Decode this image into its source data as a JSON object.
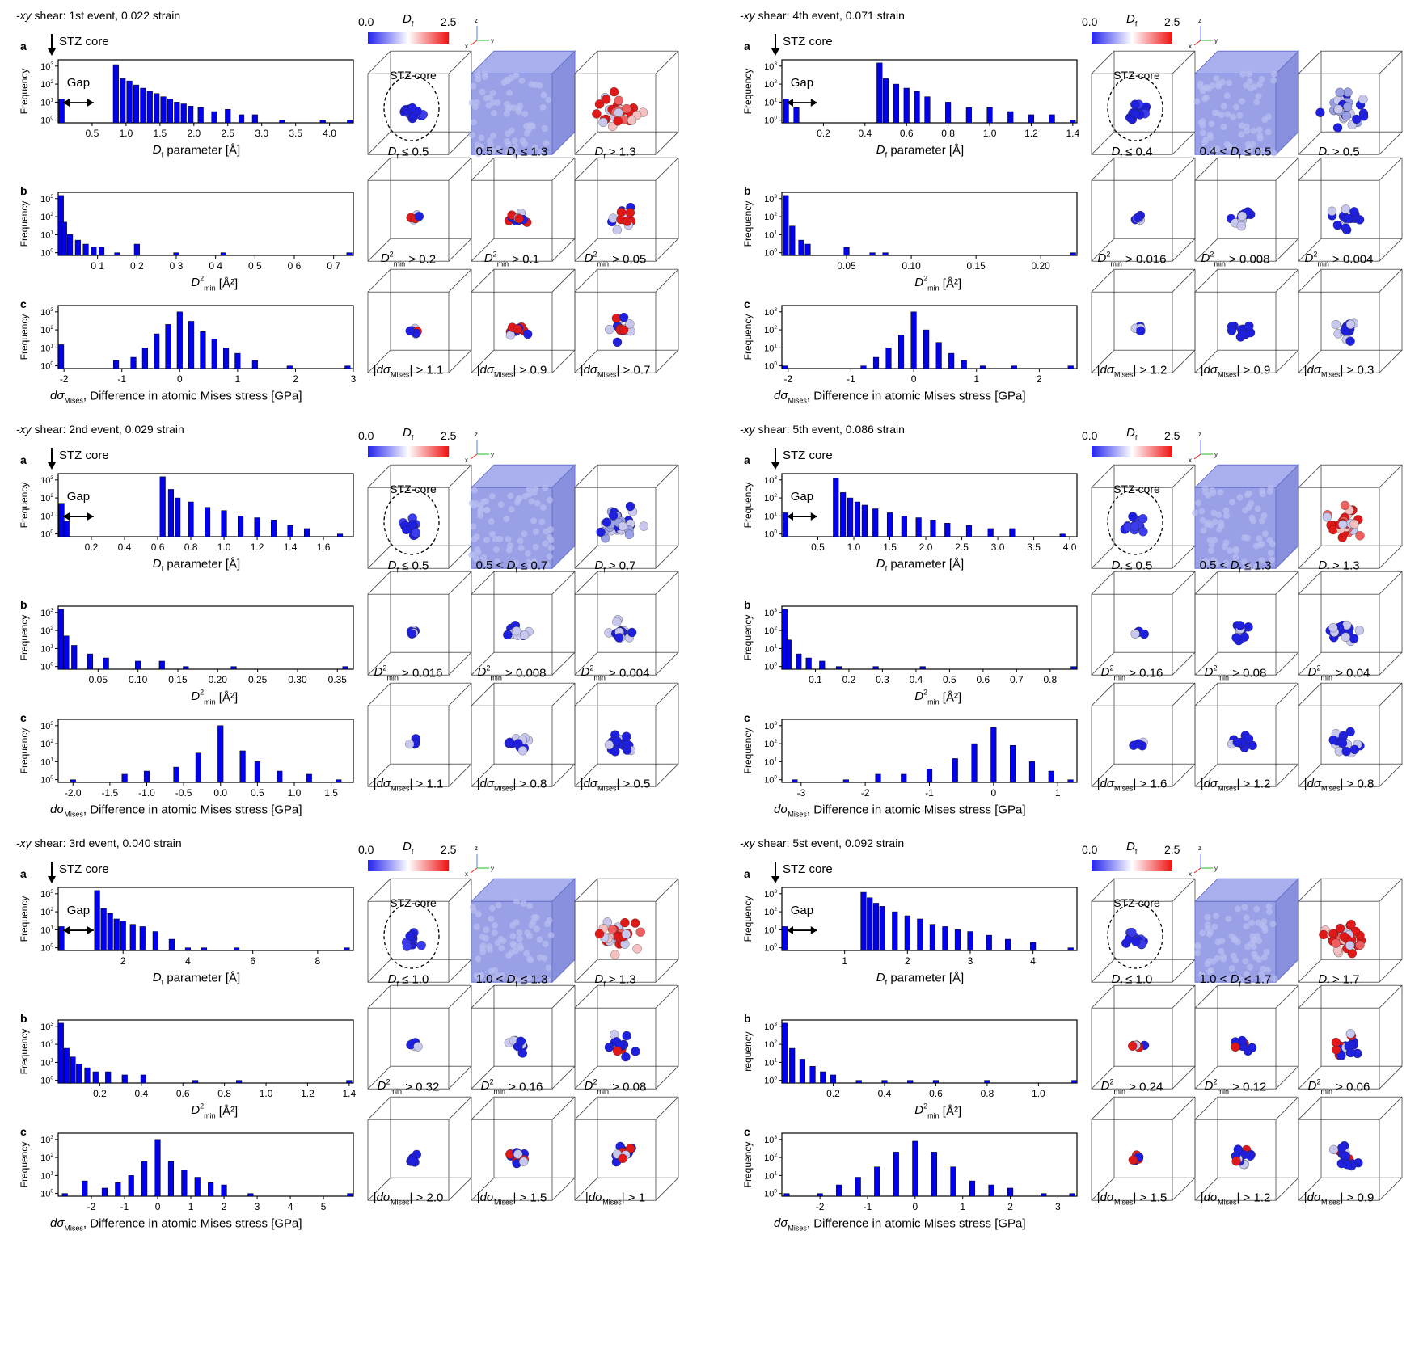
{
  "colors": {
    "bar": "#0000ee",
    "bar_edge": "#000000",
    "cb_low": "#2222ee",
    "cb_mid": "#ffffff",
    "cb_high": "#ee1111",
    "atom_blue": "#1f1fe0",
    "atom_red": "#e01818",
    "atom_pale": "#c8c8ee"
  },
  "common": {
    "freq": "Frequency",
    "freq_b_event6": "requency",
    "df_axis": "D",
    "df_sub": "f",
    "df_axis_rest": " parameter  [Å]",
    "d2_axis": "D",
    "d2_sup": "2",
    "d2_sub": "min",
    "d2_unit": "[Å²]",
    "ds_axis": "dσ",
    "ds_sub": "Mises",
    "ds_rest": ", Difference in atomic Mises stress [GPa]",
    "cb_min": "0.0",
    "cb_max": "2.5",
    "cb_label": "D",
    "cb_sub": "f",
    "stz_core": "STZ core",
    "gap": "Gap",
    "labels": [
      "a",
      "b",
      "c"
    ],
    "axis_x": "x",
    "axis_y": "y",
    "axis_z": "z"
  },
  "events": [
    {
      "title": "-xy shear: 1st event, 0.022 strain",
      "title_prefix": "-xy",
      "title_rest": " shear: 1st event, 0.022 strain",
      "gap": true,
      "xrange_a": [
        0,
        4.35
      ],
      "xrange_b": [
        0,
        0.75
      ],
      "xrange_c": [
        -2.1,
        3.0
      ],
      "ticks_a": [
        "0.5",
        "1.0",
        "1.5",
        "2.0",
        "2.5",
        "3.0",
        "3.5",
        "4.0"
      ],
      "ticks_a_v": [
        0.5,
        1.0,
        1.5,
        2.0,
        2.5,
        3.0,
        3.5,
        4.0
      ],
      "ticks_b": [
        "0 1",
        "0 2",
        "0 3",
        "0 4",
        "0 5",
        "0 6",
        "0 7"
      ],
      "ticks_b_v": [
        0.1,
        0.2,
        0.3,
        0.4,
        0.5,
        0.6,
        0.7
      ],
      "ticks_c": [
        "-2",
        "-1",
        "0",
        "1",
        "2",
        "3"
      ],
      "ticks_c_v": [
        -2,
        -1,
        0,
        1,
        2,
        3
      ],
      "cap_a": [
        "≤ 0.5",
        "0.5 < ",
        " ≤ 1.3",
        "> 1.3"
      ],
      "cap_b": [
        "> 0.2",
        "> 0.1",
        "> 0.05"
      ],
      "cap_c": [
        "> 1.1",
        "> 0.9",
        "> 0.7"
      ]
    },
    {
      "title": "-xy shear: 4th event, 0.071 strain",
      "title_prefix": "-xy",
      "title_rest": " shear: 4th event, 0.071 strain",
      "gap": true,
      "xrange_a": [
        0,
        1.42
      ],
      "xrange_b": [
        0,
        0.228
      ],
      "xrange_c": [
        -2.1,
        2.6
      ],
      "ticks_a": [
        "0.2",
        "0.4",
        "0.6",
        "0.8",
        "1.0",
        "1.2",
        "1.4"
      ],
      "ticks_a_v": [
        0.2,
        0.4,
        0.6,
        0.8,
        1.0,
        1.2,
        1.4
      ],
      "ticks_b": [
        "0.05",
        "0.10",
        "0.15",
        "0.20"
      ],
      "ticks_b_v": [
        0.05,
        0.1,
        0.15,
        0.2
      ],
      "ticks_c": [
        "-2",
        "-1",
        "0",
        "1",
        "2"
      ],
      "ticks_c_v": [
        -2,
        -1,
        0,
        1,
        2
      ],
      "cap_a": [
        "≤ 0.4",
        "0.4 < ",
        " ≤ 0.5",
        "> 0.5"
      ],
      "cap_b": [
        "> 0.016",
        "> 0.008",
        "> 0.004"
      ],
      "cap_c": [
        "> 1.2",
        "> 0.9",
        "> 0.3"
      ]
    },
    {
      "title": "-xy shear: 2nd event, 0.029 strain",
      "title_prefix": "-xy",
      "title_rest": " shear: 2nd event, 0.029 strain",
      "gap": true,
      "xrange_a": [
        0,
        1.78
      ],
      "xrange_b": [
        0,
        0.37
      ],
      "xrange_c": [
        -2.2,
        1.8
      ],
      "ticks_a": [
        "0.2",
        "0.4",
        "0.6",
        "0.8",
        "1.0",
        "1.2",
        "1.4",
        "1.6"
      ],
      "ticks_a_v": [
        0.2,
        0.4,
        0.6,
        0.8,
        1.0,
        1.2,
        1.4,
        1.6
      ],
      "ticks_b": [
        "0.05",
        "0.10",
        "0.15",
        "0.20",
        "0.25",
        "0.30",
        "0.35"
      ],
      "ticks_b_v": [
        0.05,
        0.1,
        0.15,
        0.2,
        0.25,
        0.3,
        0.35
      ],
      "ticks_c": [
        "-2.0",
        "-1.5",
        "-1.0",
        "-0.5",
        "0.0",
        "0.5",
        "1.0",
        "1.5"
      ],
      "ticks_c_v": [
        -2.0,
        -1.5,
        -1.0,
        -0.5,
        0.0,
        0.5,
        1.0,
        1.5
      ],
      "cap_a": [
        "≤ 0.5",
        "0.5 < ",
        " ≤ 0.7",
        "> 0.7"
      ],
      "cap_b": [
        "> 0.016",
        "> 0.008",
        "> 0.004"
      ],
      "cap_c": [
        "> 1.1",
        "> 0.8",
        "> 0.5"
      ]
    },
    {
      "title": "-xy shear: 5th event, 0.086 strain",
      "title_prefix": "-xy",
      "title_rest": " shear: 5th event, 0.086 strain",
      "gap": true,
      "xrange_a": [
        0,
        4.1
      ],
      "xrange_b": [
        0,
        0.88
      ],
      "xrange_c": [
        -3.3,
        1.3
      ],
      "ticks_a": [
        "0.5",
        "1.0",
        "1.5",
        "2.0",
        "2.5",
        "3.0",
        "3.5",
        "4.0"
      ],
      "ticks_a_v": [
        0.5,
        1.0,
        1.5,
        2.0,
        2.5,
        3.0,
        3.5,
        4.0
      ],
      "ticks_b": [
        "0.1",
        "0.2",
        "0.3",
        "0.4",
        "0.5",
        "0.6",
        "0.7",
        "0.8"
      ],
      "ticks_b_v": [
        0.1,
        0.2,
        0.3,
        0.4,
        0.5,
        0.6,
        0.7,
        0.8
      ],
      "ticks_c": [
        "-3",
        "-2",
        "-1",
        "0",
        "1"
      ],
      "ticks_c_v": [
        -3,
        -2,
        -1,
        0,
        1
      ],
      "cap_a": [
        "≤ 0.5",
        "0.5 < ",
        " ≤ 1.3",
        "> 1.3"
      ],
      "cap_b": [
        "> 0.16",
        "> 0.08",
        "> 0.04"
      ],
      "cap_c": [
        "> 1.6",
        "> 1.2",
        "> 0.8"
      ]
    },
    {
      "title": "-xy shear: 3rd event, 0.040 strain",
      "title_prefix": "-xy",
      "title_rest": " shear: 3rd event, 0.040 strain",
      "gap": true,
      "xrange_a": [
        0,
        9.1
      ],
      "xrange_b": [
        0,
        1.42
      ],
      "xrange_c": [
        -3.0,
        5.9
      ],
      "ticks_a": [
        "2",
        "4",
        "6",
        "8"
      ],
      "ticks_a_v": [
        2,
        4,
        6,
        8
      ],
      "ticks_b": [
        "0.2",
        "0.4",
        "0.6",
        "0.8",
        "1.0",
        "1.2",
        "1.4"
      ],
      "ticks_b_v": [
        0.2,
        0.4,
        0.6,
        0.8,
        1.0,
        1.2,
        1.4
      ],
      "ticks_c": [
        "-2",
        "-1",
        "0",
        "1",
        "2",
        "3",
        "4",
        "5"
      ],
      "ticks_c_v": [
        -2,
        -1,
        0,
        1,
        2,
        3,
        4,
        5
      ],
      "cap_a": [
        "≤ 1.0",
        "1.0 < ",
        " ≤ 1.3",
        "> 1.3"
      ],
      "cap_b": [
        "> 0.32",
        "> 0.16",
        "> 0.08"
      ],
      "cap_c": [
        "> 2.0",
        "> 1.5",
        "> 1"
      ]
    },
    {
      "title": "-xy shear: 5st event, 0.092 strain",
      "title_prefix": "-xy",
      "title_rest": " shear: 5st event, 0.092 strain",
      "gap": true,
      "xrange_a": [
        0,
        4.7
      ],
      "xrange_b": [
        0,
        1.15
      ],
      "xrange_c": [
        -2.8,
        3.4
      ],
      "ticks_a": [
        "1",
        "2",
        "3",
        "4"
      ],
      "ticks_a_v": [
        1,
        2,
        3,
        4
      ],
      "ticks_b": [
        "0.2",
        "0.4",
        "0.6",
        "0.8",
        "1.0"
      ],
      "ticks_b_v": [
        0.2,
        0.4,
        0.6,
        0.8,
        1.0
      ],
      "ticks_c": [
        "-2",
        "-1",
        "0",
        "1",
        "2",
        "3"
      ],
      "ticks_c_v": [
        -2,
        -1,
        0,
        1,
        2,
        3
      ],
      "cap_a": [
        "≤ 1.0",
        "1.0 < ",
        " ≤ 1.7",
        "> 1.7"
      ],
      "cap_b": [
        "> 0.24",
        "> 0.12",
        "> 0.06"
      ],
      "cap_c": [
        "> 1.5",
        "> 1.2",
        "> 0.9"
      ]
    }
  ],
  "chart_data": [
    {
      "type": "bar",
      "event": 1,
      "panel": "a",
      "x": [
        0.05,
        0.85,
        0.95,
        1.05,
        1.15,
        1.25,
        1.35,
        1.45,
        1.55,
        1.65,
        1.75,
        1.85,
        1.95,
        2.1,
        2.3,
        2.5,
        2.7,
        2.9,
        3.3,
        3.9,
        4.3
      ],
      "y": [
        15,
        1200,
        200,
        150,
        90,
        60,
        40,
        30,
        20,
        15,
        10,
        8,
        6,
        5,
        3,
        4,
        2,
        2,
        1,
        1,
        1
      ],
      "yscale": "log"
    },
    {
      "type": "bar",
      "event": 1,
      "panel": "b",
      "x": [
        0.005,
        0.015,
        0.03,
        0.05,
        0.07,
        0.09,
        0.11,
        0.15,
        0.2,
        0.3,
        0.42,
        0.74
      ],
      "y": [
        1500,
        50,
        10,
        5,
        3,
        2,
        2,
        1,
        3,
        1,
        1,
        1
      ],
      "yscale": "log"
    },
    {
      "type": "bar",
      "event": 1,
      "panel": "c",
      "x": [
        -2.05,
        -1.1,
        -0.8,
        -0.6,
        -0.4,
        -0.2,
        0,
        0.2,
        0.4,
        0.6,
        0.8,
        1.0,
        1.3,
        1.9,
        2.9
      ],
      "y": [
        15,
        2,
        3,
        10,
        60,
        200,
        1000,
        300,
        80,
        30,
        10,
        5,
        2,
        1,
        1
      ],
      "yscale": "log"
    },
    {
      "type": "bar",
      "event": 2,
      "panel": "a",
      "x": [
        0.02,
        0.07,
        0.47,
        0.5,
        0.55,
        0.6,
        0.65,
        0.7,
        0.8,
        0.9,
        1.0,
        1.1,
        1.2,
        1.3,
        1.4
      ],
      "y": [
        15,
        5,
        1500,
        200,
        100,
        60,
        40,
        20,
        10,
        5,
        5,
        3,
        2,
        2,
        1
      ],
      "yscale": "log"
    },
    {
      "type": "bar",
      "event": 2,
      "panel": "b",
      "x": [
        0.003,
        0.008,
        0.015,
        0.02,
        0.05,
        0.07,
        0.08,
        0.225
      ],
      "y": [
        1500,
        30,
        5,
        3,
        2,
        1,
        1,
        1
      ],
      "yscale": "log"
    },
    {
      "type": "bar",
      "event": 2,
      "panel": "c",
      "x": [
        -2.05,
        -0.8,
        -0.6,
        -0.4,
        -0.2,
        0,
        0.2,
        0.4,
        0.6,
        0.8,
        1.1,
        1.6,
        2.5
      ],
      "y": [
        1,
        1,
        3,
        10,
        50,
        1000,
        100,
        20,
        5,
        2,
        1,
        1,
        1
      ],
      "yscale": "log"
    },
    {
      "type": "bar",
      "event": 3,
      "panel": "a",
      "x": [
        0.02,
        0.05,
        0.63,
        0.68,
        0.72,
        0.8,
        0.9,
        1.0,
        1.1,
        1.2,
        1.3,
        1.4,
        1.5,
        1.7
      ],
      "y": [
        50,
        5,
        1500,
        300,
        100,
        60,
        30,
        20,
        10,
        8,
        6,
        3,
        2,
        1
      ],
      "yscale": "log"
    },
    {
      "type": "bar",
      "event": 3,
      "panel": "b",
      "x": [
        0.003,
        0.01,
        0.02,
        0.04,
        0.06,
        0.1,
        0.13,
        0.16,
        0.22,
        0.36
      ],
      "y": [
        1500,
        50,
        15,
        5,
        3,
        2,
        2,
        1,
        1,
        1
      ],
      "yscale": "log"
    },
    {
      "type": "bar",
      "event": 3,
      "panel": "c",
      "x": [
        -2.0,
        -1.3,
        -1.0,
        -0.6,
        -0.3,
        0,
        0.3,
        0.5,
        0.8,
        1.2,
        1.6
      ],
      "y": [
        1,
        2,
        3,
        5,
        30,
        1000,
        40,
        10,
        3,
        2,
        1
      ],
      "yscale": "log"
    },
    {
      "type": "bar",
      "event": 4,
      "panel": "a",
      "x": [
        0.05,
        0.75,
        0.85,
        0.95,
        1.05,
        1.15,
        1.3,
        1.5,
        1.7,
        1.9,
        2.1,
        2.3,
        2.6,
        2.9,
        3.2,
        3.9
      ],
      "y": [
        15,
        1200,
        200,
        100,
        60,
        40,
        25,
        15,
        10,
        8,
        6,
        4,
        3,
        2,
        2,
        1
      ],
      "yscale": "log"
    },
    {
      "type": "bar",
      "event": 4,
      "panel": "b",
      "x": [
        0.005,
        0.02,
        0.05,
        0.08,
        0.12,
        0.17,
        0.28,
        0.42,
        0.87
      ],
      "y": [
        1500,
        30,
        5,
        3,
        2,
        1,
        1,
        1,
        1
      ],
      "yscale": "log"
    },
    {
      "type": "bar",
      "event": 4,
      "panel": "c",
      "x": [
        -3.1,
        -2.3,
        -1.8,
        -1.4,
        -1.0,
        -0.6,
        -0.3,
        0,
        0.3,
        0.6,
        0.9,
        1.2
      ],
      "y": [
        1,
        1,
        2,
        2,
        4,
        15,
        100,
        800,
        80,
        10,
        3,
        1
      ],
      "yscale": "log"
    },
    {
      "type": "bar",
      "event": 5,
      "panel": "a",
      "x": [
        0.1,
        1.2,
        1.4,
        1.6,
        1.8,
        2.0,
        2.3,
        2.6,
        3.0,
        3.5,
        4.0,
        4.5,
        5.5,
        8.9
      ],
      "y": [
        15,
        1500,
        150,
        80,
        40,
        30,
        20,
        15,
        8,
        3,
        1,
        1,
        1,
        1
      ],
      "yscale": "log"
    },
    {
      "type": "bar",
      "event": 5,
      "panel": "b",
      "x": [
        0.01,
        0.04,
        0.07,
        0.1,
        0.14,
        0.18,
        0.24,
        0.32,
        0.41,
        0.66,
        0.87,
        1.4
      ],
      "y": [
        1500,
        60,
        20,
        8,
        5,
        3,
        3,
        2,
        2,
        1,
        1,
        1
      ],
      "yscale": "log"
    },
    {
      "type": "bar",
      "event": 5,
      "panel": "c",
      "x": [
        -2.8,
        -2.2,
        -1.6,
        -1.2,
        -0.8,
        -0.4,
        0,
        0.4,
        0.8,
        1.2,
        1.6,
        2.0,
        2.8,
        5.8
      ],
      "y": [
        1,
        5,
        2,
        4,
        10,
        60,
        1000,
        60,
        20,
        8,
        4,
        3,
        1,
        1
      ],
      "yscale": "log"
    },
    {
      "type": "bar",
      "event": 6,
      "panel": "a",
      "x": [
        0.03,
        1.3,
        1.4,
        1.5,
        1.6,
        1.8,
        2.0,
        2.2,
        2.4,
        2.6,
        2.8,
        3.0,
        3.3,
        3.6,
        4.0,
        4.6
      ],
      "y": [
        15,
        1200,
        600,
        300,
        200,
        100,
        60,
        40,
        20,
        15,
        10,
        8,
        5,
        3,
        2,
        1
      ],
      "yscale": "log"
    },
    {
      "type": "bar",
      "event": 6,
      "panel": "b",
      "x": [
        0.01,
        0.04,
        0.08,
        0.12,
        0.16,
        0.2,
        0.3,
        0.4,
        0.5,
        0.6,
        0.8,
        1.14
      ],
      "y": [
        1500,
        60,
        15,
        6,
        3,
        2,
        1,
        1,
        1,
        1,
        1,
        1
      ],
      "yscale": "log"
    },
    {
      "type": "bar",
      "event": 6,
      "panel": "c",
      "x": [
        -2.7,
        -2.0,
        -1.6,
        -1.2,
        -0.8,
        -0.4,
        0,
        0.4,
        0.8,
        1.2,
        1.6,
        2.0,
        2.7,
        3.3
      ],
      "y": [
        1,
        1,
        3,
        8,
        30,
        200,
        800,
        200,
        30,
        5,
        3,
        2,
        1,
        1
      ],
      "yscale": "log"
    }
  ]
}
